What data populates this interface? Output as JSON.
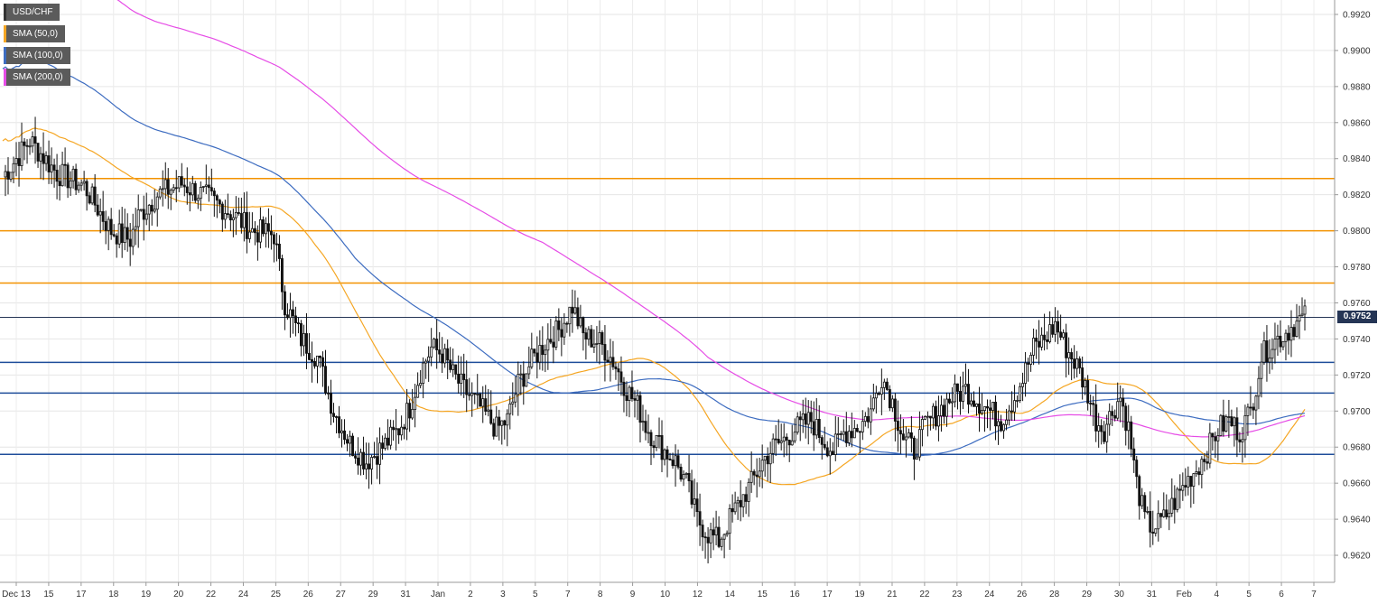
{
  "chart_data": {
    "type": "candlestick",
    "symbol": "USD/CHF",
    "legend": [
      {
        "label": "USD/CHF",
        "color": "#333333"
      },
      {
        "label": "SMA (50,0)",
        "color": "#f5a623"
      },
      {
        "label": "SMA (100,0)",
        "color": "#3d6cc0"
      },
      {
        "label": "SMA (200,0)",
        "color": "#e64ce6"
      }
    ],
    "current_price": "0.9752",
    "ylim": [
      0.9605,
      0.9928
    ],
    "y_ticks": [
      "0.9920",
      "0.9900",
      "0.9880",
      "0.9860",
      "0.9840",
      "0.9820",
      "0.9800",
      "0.9780",
      "0.9760",
      "0.9740",
      "0.9720",
      "0.9700",
      "0.9680",
      "0.9660",
      "0.9640",
      "0.9620"
    ],
    "x_ticks": [
      "Dec 13",
      "15",
      "17",
      "18",
      "19",
      "20",
      "22",
      "24",
      "25",
      "26",
      "27",
      "29",
      "31",
      "Jan",
      "2",
      "3",
      "5",
      "7",
      "8",
      "9",
      "10",
      "12",
      "14",
      "15",
      "16",
      "17",
      "19",
      "21",
      "22",
      "23",
      "24",
      "26",
      "28",
      "29",
      "30",
      "31",
      "Feb",
      "4",
      "5",
      "6",
      "7"
    ],
    "resistance_levels": [
      0.9829,
      0.98,
      0.9771
    ],
    "support_levels": [
      0.9727,
      0.971,
      0.9676
    ],
    "close_path": [
      [
        0,
        0.983
      ],
      [
        10,
        0.985
      ],
      [
        20,
        0.9832
      ],
      [
        30,
        0.9825
      ],
      [
        40,
        0.98
      ],
      [
        47,
        0.9795
      ],
      [
        50,
        0.9808
      ],
      [
        57,
        0.982
      ],
      [
        66,
        0.9826
      ],
      [
        76,
        0.9818
      ],
      [
        84,
        0.981
      ],
      [
        92,
        0.98
      ],
      [
        100,
        0.9798
      ],
      [
        104,
        0.976
      ],
      [
        110,
        0.974
      ],
      [
        116,
        0.973
      ],
      [
        122,
        0.97
      ],
      [
        128,
        0.9682
      ],
      [
        134,
        0.9672
      ],
      [
        140,
        0.968
      ],
      [
        146,
        0.969
      ],
      [
        150,
        0.9702
      ],
      [
        154,
        0.9722
      ],
      [
        158,
        0.9735
      ],
      [
        162,
        0.9732
      ],
      [
        166,
        0.972
      ],
      [
        170,
        0.9712
      ],
      [
        176,
        0.9702
      ],
      [
        182,
        0.969
      ],
      [
        186,
        0.9695
      ],
      [
        190,
        0.9715
      ],
      [
        196,
        0.973
      ],
      [
        200,
        0.9738
      ],
      [
        205,
        0.9745
      ],
      [
        210,
        0.9758
      ],
      [
        214,
        0.9742
      ],
      [
        220,
        0.9738
      ],
      [
        225,
        0.9728
      ],
      [
        230,
        0.9712
      ],
      [
        234,
        0.9703
      ],
      [
        237,
        0.9692
      ],
      [
        240,
        0.9685
      ],
      [
        244,
        0.9678
      ],
      [
        248,
        0.9672
      ],
      [
        252,
        0.966
      ],
      [
        256,
        0.964
      ],
      [
        260,
        0.9632
      ],
      [
        264,
        0.9628
      ],
      [
        268,
        0.964
      ],
      [
        272,
        0.965
      ],
      [
        276,
        0.966
      ],
      [
        280,
        0.9672
      ],
      [
        284,
        0.968
      ],
      [
        288,
        0.9684
      ],
      [
        292,
        0.969
      ],
      [
        298,
        0.9695
      ],
      [
        302,
        0.9685
      ],
      [
        306,
        0.9678
      ],
      [
        310,
        0.9688
      ],
      [
        316,
        0.9692
      ],
      [
        320,
        0.97
      ],
      [
        324,
        0.972
      ],
      [
        328,
        0.9705
      ],
      [
        332,
        0.9685
      ],
      [
        336,
        0.9678
      ],
      [
        340,
        0.9692
      ],
      [
        345,
        0.97
      ],
      [
        350,
        0.9708
      ],
      [
        355,
        0.9712
      ],
      [
        360,
        0.9705
      ],
      [
        364,
        0.97
      ],
      [
        368,
        0.9695
      ],
      [
        372,
        0.9705
      ],
      [
        376,
        0.9718
      ],
      [
        380,
        0.9735
      ],
      [
        384,
        0.974
      ],
      [
        388,
        0.9748
      ],
      [
        392,
        0.9735
      ],
      [
        396,
        0.9725
      ],
      [
        400,
        0.971
      ],
      [
        403,
        0.9695
      ],
      [
        406,
        0.969
      ],
      [
        409,
        0.97
      ],
      [
        412,
        0.9708
      ],
      [
        415,
        0.969
      ],
      [
        418,
        0.966
      ],
      [
        421,
        0.964
      ],
      [
        424,
        0.9635
      ],
      [
        428,
        0.964
      ],
      [
        432,
        0.965
      ],
      [
        436,
        0.966
      ],
      [
        440,
        0.9668
      ],
      [
        444,
        0.9678
      ],
      [
        448,
        0.969
      ],
      [
        452,
        0.9695
      ],
      [
        456,
        0.9688
      ],
      [
        460,
        0.97
      ],
      [
        464,
        0.973
      ],
      [
        468,
        0.9738
      ],
      [
        472,
        0.9742
      ],
      [
        476,
        0.9748
      ],
      [
        480,
        0.9752
      ]
    ]
  }
}
